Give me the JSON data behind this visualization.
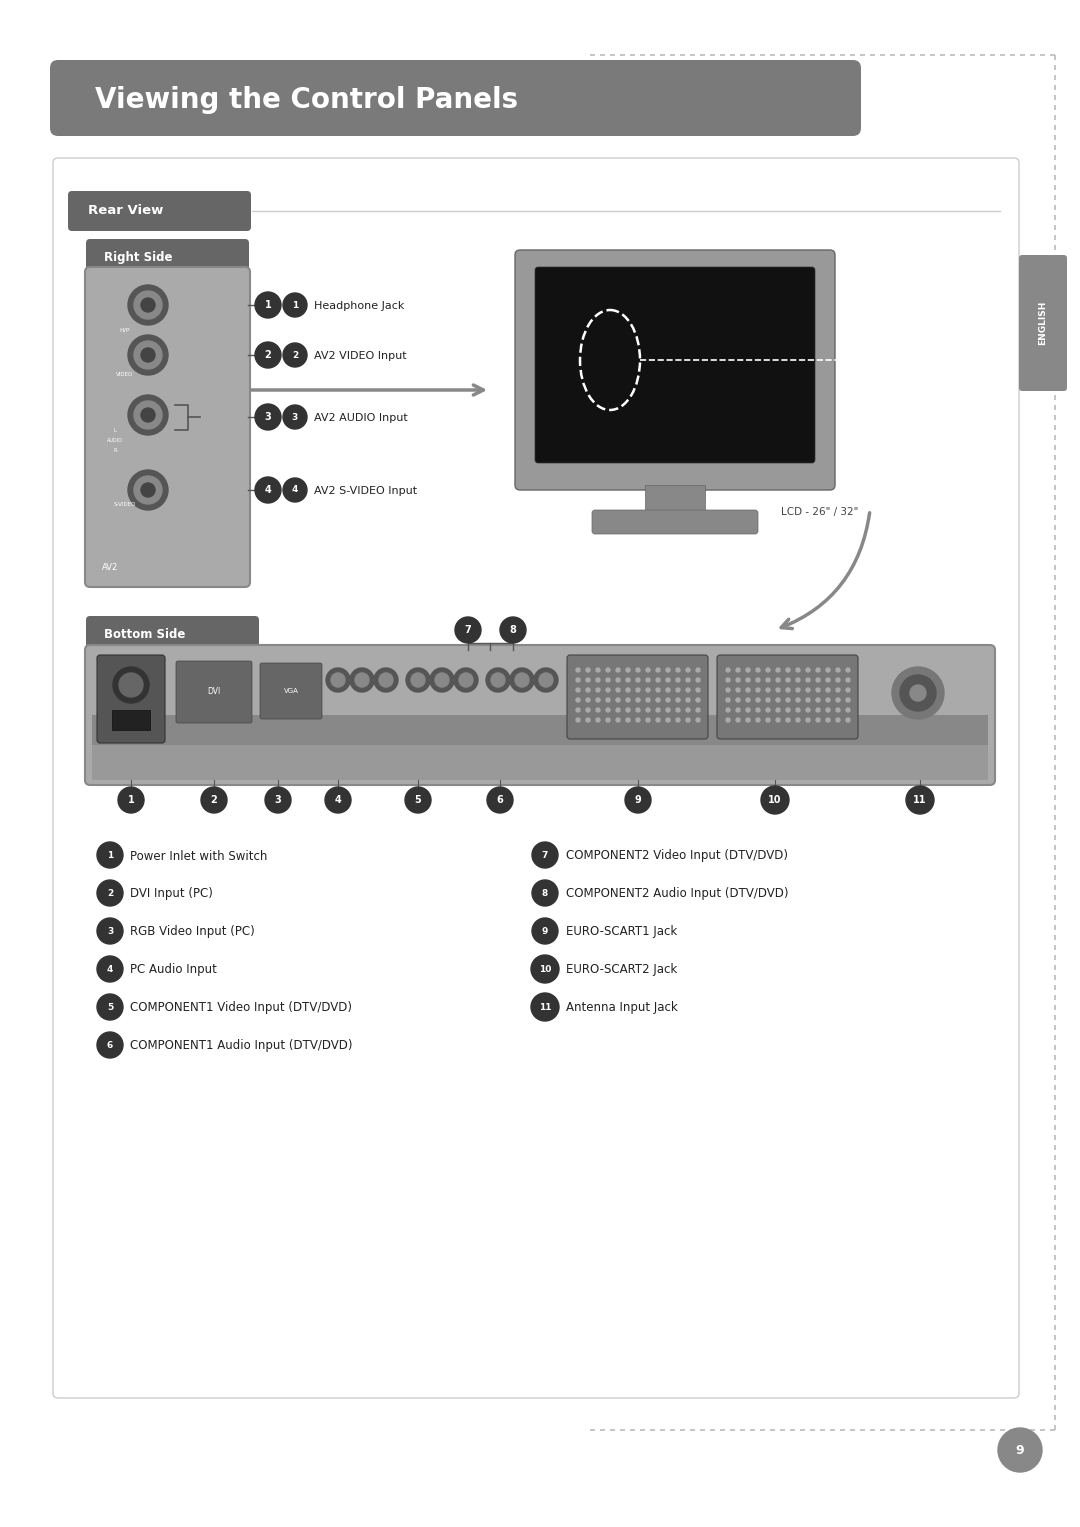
{
  "title": "Viewing the Control Panels",
  "title_bg": "#7a7a7a",
  "title_color": "#ffffff",
  "page_bg": "#ffffff",
  "border_color": "#cccccc",
  "section_rear_view": "Rear View",
  "section_right_side": "Right Side",
  "section_bottom_side": "Bottom Side",
  "section_label_bg": "#666666",
  "section_label_color": "#ffffff",
  "english_tab_text": "ENGLISH",
  "english_tab_bg": "#888888",
  "english_tab_color": "#ffffff",
  "page_number": "9",
  "page_num_bg": "#888888",
  "right_side_labels": [
    {
      "num": "1",
      "text": "Headphone Jack"
    },
    {
      "num": "2",
      "text": "AV2 VIDEO Input"
    },
    {
      "num": "3",
      "text": "AV2 AUDIO Input"
    },
    {
      "num": "4",
      "text": "AV2 S-VIDEO Input"
    }
  ],
  "bottom_labels_left": [
    {
      "num": "1",
      "text": "Power Inlet with Switch"
    },
    {
      "num": "2",
      "text": "DVI Input (PC)"
    },
    {
      "num": "3",
      "text": "RGB Video Input (PC)"
    },
    {
      "num": "4",
      "text": "PC Audio Input"
    },
    {
      "num": "5",
      "text": "COMPONENT1 Video Input (DTV/DVD)"
    },
    {
      "num": "6",
      "text": "COMPONENT1 Audio Input (DTV/DVD)"
    }
  ],
  "bottom_labels_right": [
    {
      "num": "7",
      "text": "COMPONENT2 Video Input (DTV/DVD)"
    },
    {
      "num": "8",
      "text": "COMPONENT2 Audio Input (DTV/DVD)"
    },
    {
      "num": "9",
      "text": "EURO-SCART1 Jack"
    },
    {
      "num": "10",
      "text": "EURO-SCART2 Jack"
    },
    {
      "num": "11",
      "text": "Antenna Input Jack"
    }
  ],
  "lcd_label": "LCD - 26\" / 32\"",
  "dot_line_color": "#bbbbbb",
  "arrow_color": "#888888"
}
